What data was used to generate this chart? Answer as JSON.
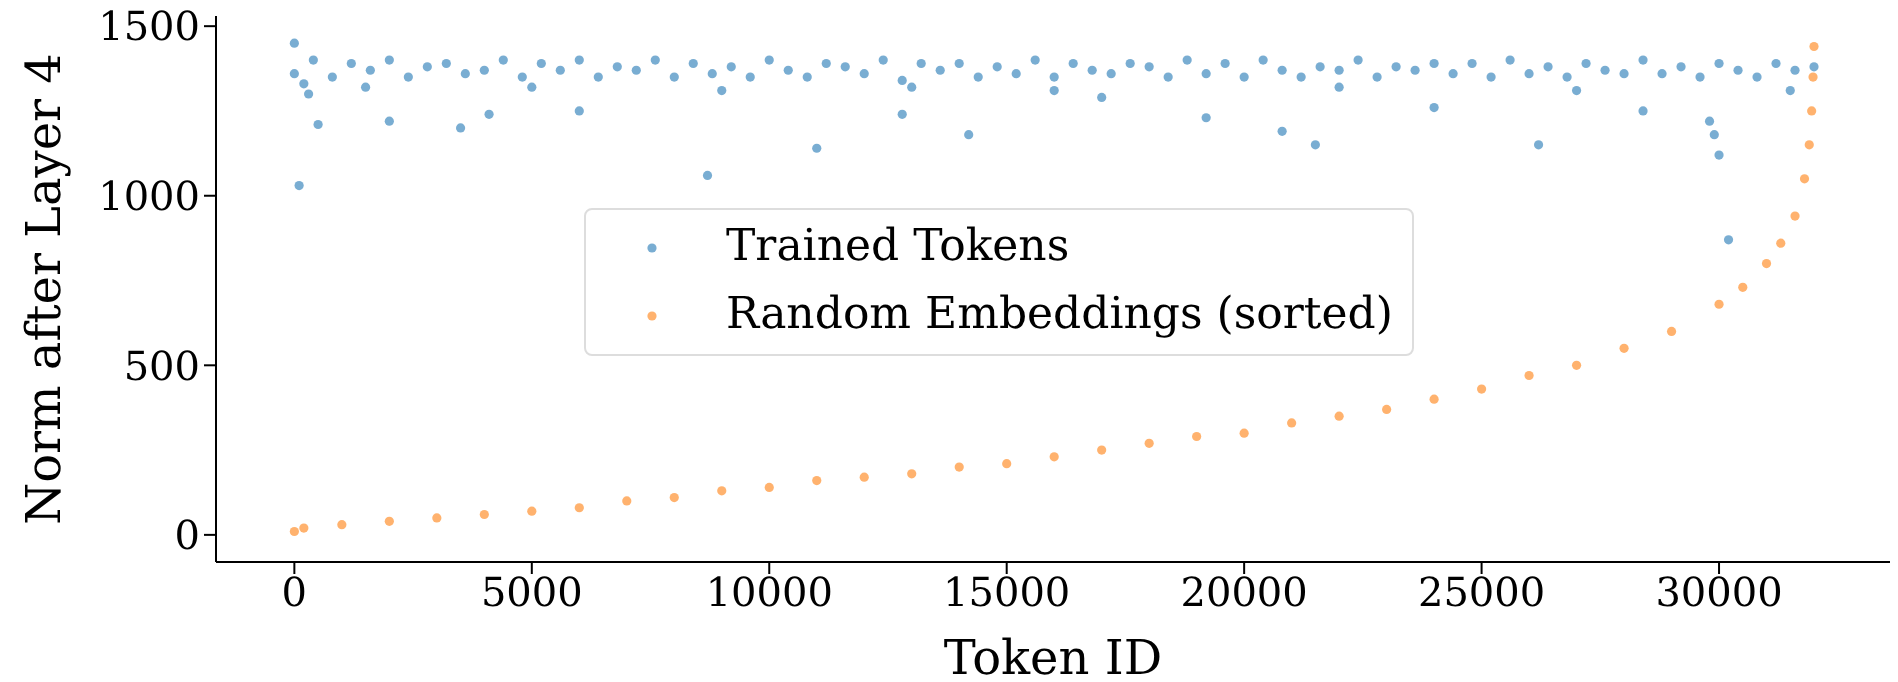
{
  "chart_data": {
    "type": "scatter",
    "xlabel": "Token ID",
    "ylabel": "Norm after Layer 4",
    "xlim": [
      -1650,
      33600
    ],
    "ylim": [
      -80,
      1530
    ],
    "xticks": [
      0,
      5000,
      10000,
      15000,
      20000,
      25000,
      30000
    ],
    "yticks": [
      0,
      500,
      1000,
      1500
    ],
    "grid": false,
    "legend": "center",
    "marker": "circle",
    "series": [
      {
        "name": "Trained Tokens",
        "color": "#1f77b4",
        "x": [
          0,
          400,
          800,
          1200,
          1600,
          2000,
          2400,
          2800,
          3200,
          3600,
          4000,
          4400,
          4800,
          5200,
          5600,
          6000,
          6400,
          6800,
          7200,
          7600,
          8000,
          8400,
          8800,
          9200,
          9600,
          10000,
          10400,
          10800,
          11200,
          11600,
          12000,
          12400,
          12800,
          13200,
          13600,
          14000,
          14400,
          14800,
          15200,
          15600,
          16000,
          16400,
          16800,
          17200,
          17600,
          18000,
          18400,
          18800,
          19200,
          19600,
          20000,
          20400,
          20800,
          21200,
          21600,
          22000,
          22400,
          22800,
          23200,
          23600,
          24000,
          24400,
          24800,
          25200,
          25600,
          26000,
          26400,
          26800,
          27200,
          27600,
          28000,
          28400,
          28800,
          29200,
          29600,
          30000,
          30400,
          30800,
          31200,
          31600,
          32000,
          0,
          100,
          300,
          500,
          2000,
          3500,
          4100,
          6000,
          8700,
          11000,
          12800,
          14200,
          17000,
          19200,
          20800,
          21500,
          24000,
          26200,
          28400,
          29800,
          29900,
          30000,
          30200,
          31500,
          200,
          1500,
          5000,
          9000,
          13000,
          16000,
          22000,
          27000
        ],
        "values": [
          1360,
          1400,
          1350,
          1390,
          1370,
          1400,
          1350,
          1380,
          1390,
          1360,
          1370,
          1400,
          1350,
          1390,
          1370,
          1400,
          1350,
          1380,
          1370,
          1400,
          1350,
          1390,
          1360,
          1380,
          1350,
          1400,
          1370,
          1350,
          1390,
          1380,
          1360,
          1400,
          1340,
          1390,
          1370,
          1390,
          1350,
          1380,
          1360,
          1400,
          1350,
          1390,
          1370,
          1360,
          1390,
          1380,
          1350,
          1400,
          1360,
          1390,
          1350,
          1400,
          1370,
          1350,
          1380,
          1370,
          1400,
          1350,
          1380,
          1370,
          1390,
          1360,
          1390,
          1350,
          1400,
          1360,
          1380,
          1350,
          1390,
          1370,
          1360,
          1400,
          1360,
          1380,
          1350,
          1390,
          1370,
          1350,
          1390,
          1370,
          1380,
          1450,
          1030,
          1300,
          1210,
          1220,
          1200,
          1240,
          1250,
          1060,
          1140,
          1240,
          1180,
          1290,
          1230,
          1190,
          1150,
          1260,
          1150,
          1250,
          1220,
          1180,
          1120,
          870,
          1310,
          1330,
          1320,
          1320,
          1310,
          1320,
          1310,
          1320,
          1310
        ]
      },
      {
        "name": "Random Embeddings (sorted)",
        "color": "#ff7f0e",
        "x": [
          0,
          200,
          1000,
          2000,
          3000,
          4000,
          5000,
          6000,
          7000,
          8000,
          9000,
          10000,
          11000,
          12000,
          13000,
          14000,
          15000,
          16000,
          17000,
          18000,
          19000,
          20000,
          21000,
          22000,
          23000,
          24000,
          25000,
          26000,
          27000,
          28000,
          29000,
          30000,
          30500,
          31000,
          31300,
          31600,
          31800,
          31900,
          31950,
          31980,
          32000
        ],
        "values": [
          10,
          20,
          30,
          40,
          50,
          60,
          70,
          80,
          100,
          110,
          130,
          140,
          160,
          170,
          180,
          200,
          210,
          230,
          250,
          270,
          290,
          300,
          330,
          350,
          370,
          400,
          430,
          470,
          500,
          550,
          600,
          680,
          730,
          800,
          860,
          940,
          1050,
          1150,
          1250,
          1350,
          1440
        ]
      }
    ]
  }
}
